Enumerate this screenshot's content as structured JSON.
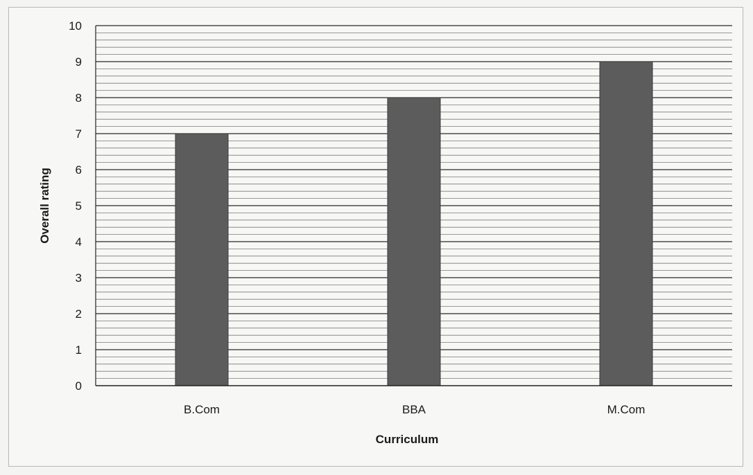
{
  "chart_data": {
    "type": "bar",
    "categories": [
      "B.Com",
      "BBA",
      "M.Com"
    ],
    "values": [
      7,
      8,
      9
    ],
    "title": "",
    "xlabel": "Curriculum",
    "ylabel": "Overall rating",
    "ylim": [
      0,
      10
    ],
    "yticks": [
      "0",
      "1",
      "2",
      "3",
      "4",
      "5",
      "6",
      "7",
      "8",
      "9",
      "10"
    ],
    "grid": true,
    "legend": "none",
    "colors": {
      "bar": "#5c5c5c",
      "bar_edge": "#3a3a3a",
      "grid_major": "#2a2a2a",
      "grid_minor": "#7a7a7a"
    }
  }
}
